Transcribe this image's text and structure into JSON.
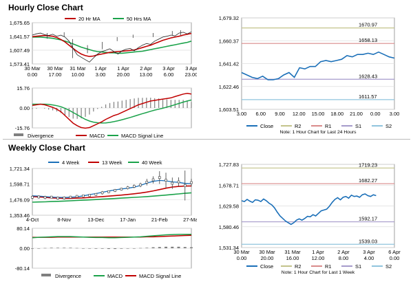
{
  "sections": {
    "hourly_title": "Hourly Close Chart",
    "weekly_title": "Weekly Close Chart"
  },
  "colors": {
    "close": "#1a6fb8",
    "ma_short": "#c00000",
    "ma_long": "#1aa24a",
    "r2": "#c3c38a",
    "r1": "#d98a8a",
    "s1": "#a59acb",
    "s2": "#8fc4dd",
    "candle": "#3c3c3c",
    "grid": "#dddddd",
    "axis": "#888888",
    "bar": "#7f7f7f"
  },
  "chart_data": [
    {
      "id": "hourly_price",
      "type": "line",
      "title": "Hourly Close Chart",
      "legend": [
        "20 Hr MA",
        "50 Hrs MA"
      ],
      "x_tick_labels": [
        "30 Mar|0.00",
        "30 Mar|17.00",
        "31 Mar|10.00",
        "1 Apr|3.00",
        "1 Apr|20.00",
        "2 Apr|13.00",
        "3 Apr|6.00",
        "3 Apr|23.00"
      ],
      "y_tick_labels": [
        "1,675.65",
        "1,641.57",
        "1,607.49",
        "1,573.41"
      ],
      "ylim": [
        1573.41,
        1675.65
      ],
      "series": [
        {
          "name": "Close",
          "values": [
            1645,
            1648,
            1650,
            1646,
            1644,
            1647,
            1642,
            1645,
            1640,
            1630,
            1612,
            1596,
            1590,
            1584,
            1578,
            1588,
            1598,
            1604,
            1607,
            1611,
            1604,
            1598,
            1606,
            1610,
            1612,
            1606,
            1614,
            1620,
            1624,
            1622,
            1630,
            1635,
            1640,
            1642,
            1645,
            1643,
            1650,
            1652,
            1648,
            1653
          ]
        },
        {
          "name": "20 Hr MA",
          "values": [
            1641,
            1642,
            1643,
            1644,
            1643,
            1642,
            1639,
            1634,
            1628,
            1620,
            1612,
            1604,
            1598,
            1594,
            1592,
            1593,
            1596,
            1598,
            1600,
            1602,
            1603,
            1604,
            1605,
            1606,
            1607,
            1608,
            1611,
            1614,
            1617,
            1620,
            1624,
            1628,
            1632,
            1635,
            1638,
            1640,
            1642,
            1645,
            1647,
            1649
          ]
        },
        {
          "name": "50 Hrs MA",
          "values": [
            1640,
            1640,
            1640,
            1639,
            1638,
            1637,
            1635,
            1633,
            1630,
            1627,
            1623,
            1619,
            1615,
            1612,
            1609,
            1606,
            1604,
            1603,
            1602,
            1601,
            1601,
            1600,
            1600,
            1601,
            1602,
            1603,
            1604,
            1605,
            1607,
            1609,
            1611,
            1613,
            1615,
            1617,
            1619,
            1621,
            1623,
            1625,
            1627,
            1630
          ]
        }
      ],
      "candles": [
        [
          14,
          1650,
          1636
        ],
        [
          30,
          1652,
          1640
        ],
        [
          38,
          1635,
          1588
        ],
        [
          52,
          1620,
          1600
        ],
        [
          66,
          1628,
          1610
        ],
        [
          80,
          1640,
          1630
        ],
        [
          95,
          1646,
          1638
        ],
        [
          114,
          1650,
          1640
        ],
        [
          132,
          1655,
          1645
        ],
        [
          140,
          1657,
          1645
        ]
      ]
    },
    {
      "id": "hourly_macd",
      "type": "line",
      "legend": [
        "Divergence",
        "MACD",
        "MACD Signal Line"
      ],
      "y_tick_labels": [
        "15.76",
        "0.00",
        "-15.76"
      ],
      "ylim": [
        -15.76,
        15.76
      ],
      "series": [
        {
          "name": "MACD",
          "values": [
            2,
            2.5,
            3,
            2.5,
            1.5,
            0.5,
            -1,
            -3,
            -6,
            -9,
            -12,
            -14,
            -15.5,
            -16,
            -15.5,
            -14,
            -12.5,
            -11,
            -9,
            -7.5,
            -6,
            -5,
            -3.5,
            -2,
            -0.5,
            1,
            2.5,
            3.5,
            4.5,
            5.5,
            6,
            6.5,
            7,
            7.5,
            8,
            9,
            10,
            11,
            11.5,
            11
          ]
        },
        {
          "name": "MACD Signal Line",
          "values": [
            3,
            3,
            3,
            3,
            2.8,
            2.4,
            1.8,
            1,
            -0.3,
            -1.8,
            -3.6,
            -5.4,
            -7.3,
            -9,
            -10.3,
            -11.2,
            -11.7,
            -11.9,
            -11.8,
            -11.4,
            -10.8,
            -10.1,
            -9.3,
            -8.4,
            -7.5,
            -6.5,
            -5.5,
            -4.5,
            -3.6,
            -2.6,
            -1.7,
            -1,
            -0.2,
            0.7,
            1.6,
            2.6,
            3.6,
            4.6,
            5.5,
            6.3
          ]
        }
      ],
      "divergence": [
        -1,
        -0.5,
        0,
        -0.5,
        -1.3,
        -1.9,
        -2.8,
        -4,
        -5.7,
        -7.2,
        -8.4,
        -8.6,
        -8.2,
        -7,
        -5.2,
        -2.8,
        -0.8,
        0.9,
        2.8,
        3.9,
        4.8,
        5.1,
        5.8,
        6.4,
        7,
        7.5,
        8,
        8,
        8.1,
        8.1,
        7.7,
        7.5,
        7.2,
        6.8,
        6.4,
        6.4,
        6.4,
        6.4,
        6,
        4.7
      ]
    },
    {
      "id": "hourly_close_pivots",
      "type": "line",
      "note": "Note: 1 Hour Chart for Last 24 Hours",
      "legend": [
        "Close",
        "R2",
        "R1",
        "S1",
        "S2"
      ],
      "x_tick_labels": [
        "3.00",
        "6.00",
        "9.00",
        "12.00",
        "15.00",
        "18.00",
        "21.00",
        "0.00",
        "3.00"
      ],
      "y_tick_labels": [
        "1,679.32",
        "1,660.37",
        "1,641.42",
        "1,622.46",
        "1,603.51"
      ],
      "ylim": [
        1603.51,
        1679.32
      ],
      "pivots": {
        "R2": 1670.97,
        "R1": 1658.13,
        "S1": 1628.43,
        "S2": 1611.57
      },
      "pivot_labels": {
        "R2": "1670.97",
        "R1": "1658.13",
        "S1": "1628.43",
        "S2": "1611.57"
      },
      "series": [
        {
          "name": "Close",
          "values": [
            1634,
            1632,
            1630,
            1629,
            1631,
            1628,
            1628,
            1629,
            1632,
            1634,
            1630,
            1638,
            1637,
            1639,
            1639,
            1643,
            1644,
            1643,
            1644,
            1645,
            1648,
            1647,
            1649,
            1649,
            1650,
            1649,
            1651,
            1649,
            1647,
            1646
          ]
        }
      ]
    },
    {
      "id": "weekly_price",
      "type": "line",
      "title": "Weekly Close Chart",
      "legend": [
        "4 Week",
        "13 Week",
        "40 Week"
      ],
      "x_tick_labels": [
        "4-Oct",
        "8-Nov",
        "13-Dec",
        "17-Jan",
        "21-Feb",
        "27-Mar"
      ],
      "y_tick_labels": [
        "1,721.34",
        "1,598.71",
        "1,476.09",
        "1,353.46"
      ],
      "ylim": [
        1353.46,
        1721.34
      ],
      "series": [
        {
          "name": "4 Week",
          "values": [
            1506,
            1504,
            1500,
            1496,
            1494,
            1493,
            1495,
            1498,
            1506,
            1516,
            1524,
            1534,
            1544,
            1553,
            1560,
            1566,
            1574,
            1588,
            1606,
            1620,
            1627,
            1624,
            1616,
            1612,
            1604,
            1602
          ]
        },
        {
          "name": "13 Week",
          "values": [
            1500,
            1498,
            1494,
            1490,
            1488,
            1486,
            1486,
            1488,
            1490,
            1493,
            1497,
            1500,
            1504,
            1508,
            1512,
            1517,
            1522,
            1528,
            1536,
            1545,
            1555,
            1566,
            1575,
            1580,
            1583,
            1584
          ]
        },
        {
          "name": "40 Week",
          "values": [
            1456,
            1458,
            1459,
            1461,
            1463,
            1465,
            1467,
            1470,
            1472,
            1474,
            1477,
            1480,
            1482,
            1485,
            1488,
            1491,
            1494,
            1497,
            1500,
            1504,
            1508,
            1512,
            1517,
            1521,
            1526,
            1530
          ]
        }
      ],
      "candles": [
        [
          0,
          1512,
          1478
        ],
        [
          1,
          1510,
          1484
        ],
        [
          2,
          1506,
          1480
        ],
        [
          3,
          1506,
          1486
        ],
        [
          4,
          1500,
          1476
        ],
        [
          5,
          1502,
          1478
        ],
        [
          6,
          1506,
          1486
        ],
        [
          7,
          1512,
          1492
        ],
        [
          8,
          1516,
          1496
        ],
        [
          9,
          1520,
          1500
        ],
        [
          10,
          1528,
          1506
        ],
        [
          11,
          1544,
          1516
        ],
        [
          12,
          1548,
          1528
        ],
        [
          13,
          1560,
          1536
        ],
        [
          14,
          1570,
          1548
        ],
        [
          15,
          1584,
          1556
        ],
        [
          16,
          1596,
          1566
        ],
        [
          17,
          1610,
          1574
        ],
        [
          18,
          1640,
          1588
        ],
        [
          19,
          1660,
          1604
        ],
        [
          20,
          1700,
          1600
        ],
        [
          21,
          1688,
          1570
        ],
        [
          22,
          1650,
          1560
        ],
        [
          23,
          1652,
          1580
        ],
        [
          24,
          1705,
          1470
        ],
        [
          25,
          1640,
          1580
        ]
      ]
    },
    {
      "id": "weekly_macd",
      "type": "line",
      "legend": [
        "Divergence",
        "MACD",
        "MACD Signal Line"
      ],
      "y_tick_labels": [
        "80.14",
        "0.00",
        "-80.14"
      ],
      "ylim": [
        -80.14,
        80.14
      ],
      "series": [
        {
          "name": "MACD",
          "values": [
            42,
            44,
            45,
            46,
            47,
            47,
            47,
            46,
            45,
            44,
            43,
            43,
            42,
            42,
            43,
            44,
            45,
            46,
            48,
            50,
            52,
            54,
            55,
            56,
            56,
            56
          ]
        },
        {
          "name": "MACD Signal Line",
          "values": [
            44,
            44,
            44,
            44,
            45,
            45,
            45,
            45,
            45,
            45,
            45,
            45,
            45,
            45,
            45,
            45,
            45,
            45,
            46,
            46,
            47,
            48,
            49,
            50,
            51,
            52
          ]
        }
      ],
      "divergence": [
        -2,
        0,
        1,
        2,
        2,
        2,
        2,
        1,
        0,
        -1,
        -2,
        -2,
        -3,
        -3,
        -2,
        -1,
        0,
        1,
        2,
        4,
        5,
        6,
        6,
        6,
        5,
        4
      ]
    },
    {
      "id": "weekly_close_pivots",
      "type": "line",
      "note": "Note: 1 Hour Chart for Last 1 Week",
      "legend": [
        "Close",
        "R2",
        "R1",
        "S1",
        "S2"
      ],
      "x_tick_labels": [
        "30 Mar|0.00",
        "30 Mar|20.00",
        "31 Mar|16.00",
        "1 Apr|12.00",
        "2 Apr|8.00",
        "3 Apr|4.00",
        "6 Apr|0.00"
      ],
      "y_tick_labels": [
        "1,727.83",
        "1,678.71",
        "1,629.58",
        "1,580.46",
        "1,531.34"
      ],
      "ylim": [
        1531.34,
        1727.83
      ],
      "pivots": {
        "R2": 1719.23,
        "R1": 1682.27,
        "S1": 1592.17,
        "S2": 1539.03
      },
      "pivot_labels": {
        "R2": "1719.23",
        "R1": "1682.27",
        "S1": "1592.17",
        "S2": "1539.03"
      },
      "series": [
        {
          "name": "Close",
          "values": [
            1642,
            1640,
            1645,
            1641,
            1638,
            1644,
            1643,
            1640,
            1646,
            1642,
            1636,
            1632,
            1625,
            1615,
            1606,
            1600,
            1594,
            1590,
            1586,
            1590,
            1596,
            1599,
            1596,
            1600,
            1605,
            1604,
            1609,
            1606,
            1612,
            1618,
            1620,
            1622,
            1629,
            1638,
            1645,
            1649,
            1644,
            1650,
            1652,
            1648,
            1655,
            1652,
            1653,
            1650,
            1656,
            1658,
            1654,
            1652,
            1656,
            1654
          ]
        }
      ]
    }
  ]
}
